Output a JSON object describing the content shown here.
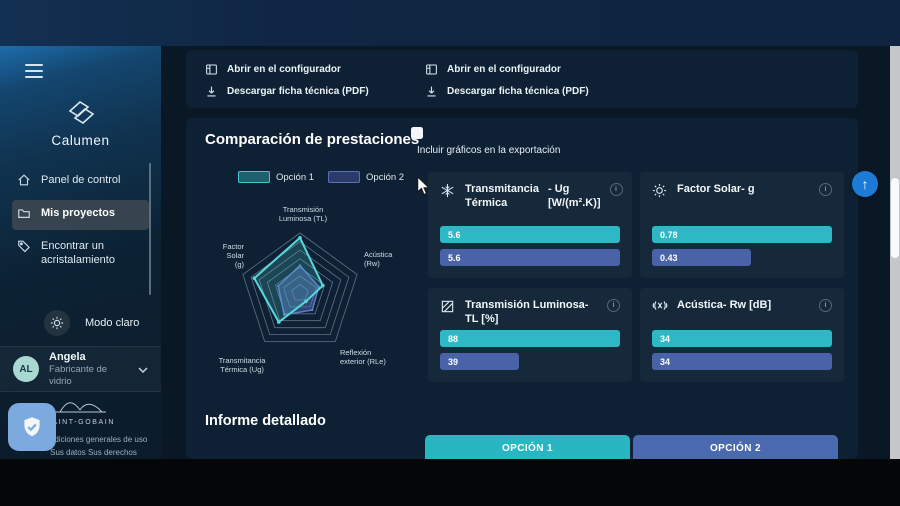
{
  "app": {
    "name": "Calumen"
  },
  "colors": {
    "teal": "#2cb9c5",
    "blue": "#4a62a8",
    "tab_teal": "#29b6c3",
    "tab_blue": "#4b69ae",
    "radar_teal": "#56d8da",
    "radar_blue": "#5d7bc7",
    "radar_teal_fill": "rgba(86,216,218,0.20)",
    "radar_blue_fill": "rgba(93,123,199,0.42)"
  },
  "sidebar": {
    "logo_text": "Calumen",
    "nav": [
      {
        "name": "panel-de-control",
        "icon": "home-icon",
        "label": "Panel de control",
        "active": false
      },
      {
        "name": "mis-proyectos",
        "icon": "folder-icon",
        "label": "Mis proyectos",
        "active": true
      },
      {
        "name": "encontrar-acristalamiento",
        "icon": "tag-icon",
        "label": "Encontrar un acristalamiento",
        "active": false
      }
    ],
    "theme_toggle": {
      "label": "Modo claro"
    },
    "user": {
      "initials": "AL",
      "name": "Angela",
      "role": "Fabricante de vidrio"
    },
    "footer": {
      "brand": "SAINT-GOBAIN",
      "links": [
        "Condiciones generales de uso",
        "Sus datos Sus derechos"
      ]
    }
  },
  "option_actions": {
    "groups": [
      {
        "open_label": "Abrir en el configurador",
        "download_label": "Descargar ficha técnica (PDF)"
      },
      {
        "open_label": "Abrir en el configurador",
        "download_label": "Descargar ficha técnica (PDF)"
      }
    ]
  },
  "comparison": {
    "title": "Comparación de prestaciones",
    "export_checkbox_label": "Incluir gráficos en la exportación",
    "export_checked": false,
    "legend": [
      {
        "label": "Opción 1",
        "fill": "#19646e",
        "border": "#3fc9cf"
      },
      {
        "label": "Opción 2",
        "fill": "#2b3a68",
        "border": "#5873b5"
      }
    ],
    "cards": [
      {
        "icon": "snowflake-icon",
        "title": "Transmitancia Térmica",
        "unit": "- Ug [W/(m².K)]",
        "values": [
          "5.6",
          "5.6"
        ],
        "pct": [
          100,
          100
        ]
      },
      {
        "icon": "sun-icon",
        "title": "Factor Solar- g",
        "unit": "",
        "values": [
          "0.78",
          "0.43"
        ],
        "pct": [
          100,
          55
        ]
      },
      {
        "icon": "glass-pane-icon",
        "title": "Transmisión Luminosa- TL [%]",
        "unit": "",
        "values": [
          "88",
          "39"
        ],
        "pct": [
          100,
          44
        ]
      },
      {
        "icon": "sound-waves-icon",
        "title": "Acústica- Rw [dB]",
        "unit": "",
        "values": [
          "34",
          "34"
        ],
        "pct": [
          100,
          100
        ]
      }
    ]
  },
  "chart_data": {
    "type": "radar",
    "title": "Comparación de prestaciones",
    "axes": [
      "Transmisión\nLuminosa (TL)",
      "Acústica\n(Rw)",
      "Reflexión\nexterior (RLe)",
      "Transmitancia\nTérmica (Ug)",
      "Factor\nSolar\n(g)"
    ],
    "rings": 7,
    "range": [
      0,
      1
    ],
    "legend_position": "top",
    "series": [
      {
        "name": "Opción 1",
        "values": [
          0.92,
          0.4,
          0.17,
          0.6,
          0.8
        ]
      },
      {
        "name": "Opción 2",
        "values": [
          0.46,
          0.33,
          0.35,
          0.45,
          0.38
        ]
      }
    ]
  },
  "detail": {
    "title": "Informe detallado",
    "tabs": [
      {
        "label": "OPCIÓN 1"
      },
      {
        "label": "OPCIÓN 2"
      }
    ]
  }
}
